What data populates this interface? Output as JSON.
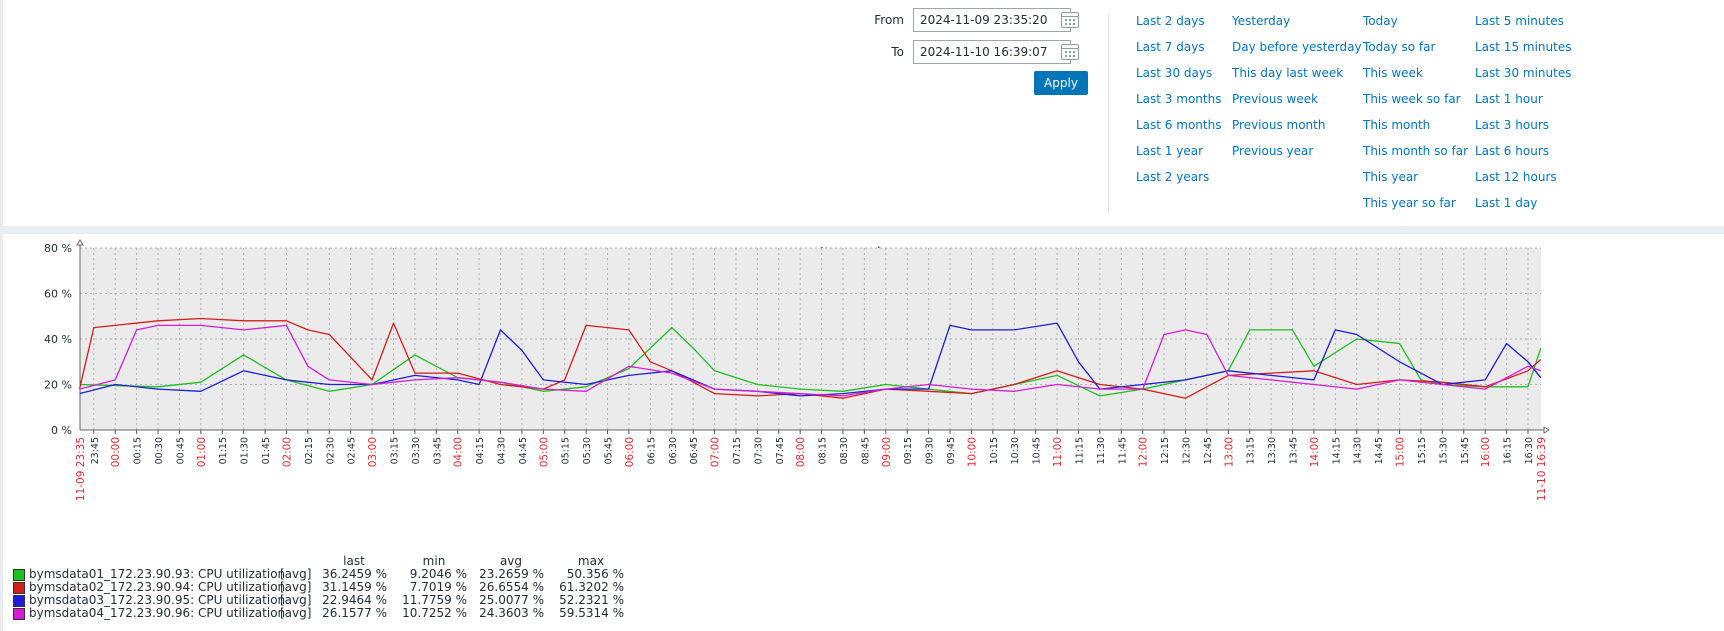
{
  "filter": {
    "from_label": "From",
    "from_value": "2024-11-09 23:35:20",
    "to_label": "To",
    "to_value": "2024-11-10 16:39:07",
    "apply_label": "Apply",
    "quick_ranges": [
      [
        "Last 2 days",
        "Last 7 days",
        "Last 30 days",
        "Last 3 months",
        "Last 6 months",
        "Last 1 year",
        "Last 2 years"
      ],
      [
        "Yesterday",
        "Day before yesterday",
        "This day last week",
        "Previous week",
        "Previous month",
        "Previous year"
      ],
      [
        "Today",
        "Today so far",
        "This week",
        "This week so far",
        "This month",
        "This month so far",
        "This year",
        "This year so far"
      ],
      [
        "Last 5 minutes",
        "Last 15 minutes",
        "Last 30 minutes",
        "Last 1 hour",
        "Last 3 hours",
        "Last 6 hours",
        "Last 12 hours",
        "Last 1 day"
      ]
    ]
  },
  "graph": {
    "title": "Item values",
    "start_label": "11-09 23:35",
    "end_label": "11-10 16:39",
    "legend_headers": [
      "last",
      "min",
      "avg",
      "max"
    ],
    "colors": {
      "major_tick": "#e0282e",
      "grid": "#aab3b9",
      "plot_bg": "#ebebeb"
    }
  },
  "chart_data": {
    "type": "line",
    "title": "Item values",
    "x_range": [
      "2024-11-09 23:35:20",
      "2024-11-10 16:39:07"
    ],
    "ylim": [
      0,
      80
    ],
    "y_ticks": [
      "0 %",
      "20 %",
      "40 %",
      "60 %",
      "80 %"
    ],
    "x_ticks": [
      "23:45",
      "00:00",
      "00:15",
      "00:30",
      "00:45",
      "01:00",
      "01:15",
      "01:30",
      "01:45",
      "02:00",
      "02:15",
      "02:30",
      "02:45",
      "03:00",
      "03:15",
      "03:30",
      "03:45",
      "04:00",
      "04:15",
      "04:30",
      "04:45",
      "05:00",
      "05:15",
      "05:30",
      "05:45",
      "06:00",
      "06:15",
      "06:30",
      "06:45",
      "07:00",
      "07:15",
      "07:30",
      "07:45",
      "08:00",
      "08:15",
      "08:30",
      "08:45",
      "09:00",
      "09:15",
      "09:30",
      "09:45",
      "10:00",
      "10:15",
      "10:30",
      "10:45",
      "11:00",
      "11:15",
      "11:30",
      "11:45",
      "12:00",
      "12:15",
      "12:30",
      "12:45",
      "13:00",
      "13:15",
      "13:30",
      "13:45",
      "14:00",
      "14:15",
      "14:30",
      "14:45",
      "15:00",
      "15:15",
      "15:30",
      "15:45",
      "16:00",
      "16:15",
      "16:30"
    ],
    "grid": true,
    "legend_position": "bottom-left",
    "series": [
      {
        "name": "bymsdata01_172.23.90.93: CPU utilization",
        "func": "[avg]",
        "color": "#1ec01e",
        "last": "36.2459 %",
        "min": "9.2046 %",
        "avg": "23.2659 %",
        "max": "50.356 %",
        "x": [
          "23:35",
          "00:30",
          "01:00",
          "01:30",
          "02:00",
          "02:30",
          "03:00",
          "03:30",
          "04:00",
          "04:30",
          "05:00",
          "05:30",
          "06:00",
          "06:30",
          "06:45",
          "07:00",
          "07:30",
          "08:00",
          "08:30",
          "09:00",
          "09:30",
          "10:00",
          "10:30",
          "11:00",
          "11:30",
          "12:00",
          "12:30",
          "13:00",
          "13:15",
          "13:45",
          "14:00",
          "14:30",
          "15:00",
          "15:15",
          "15:30",
          "16:00",
          "16:30",
          "16:39"
        ],
        "values": [
          20,
          19,
          21,
          33,
          22,
          17,
          20,
          33,
          23,
          21,
          17,
          19,
          27,
          45,
          36,
          26,
          20,
          18,
          17,
          20,
          18,
          16,
          20,
          24,
          15,
          18,
          22,
          26,
          44,
          44,
          28,
          40,
          38,
          22,
          20,
          19,
          19,
          36
        ]
      },
      {
        "name": "bymsdata02_172.23.90.94: CPU utilization",
        "func": "[avg]",
        "color": "#d41e1e",
        "last": "31.1459 %",
        "min": "7.7019 %",
        "avg": "26.6554 %",
        "max": "61.3202 %",
        "x": [
          "23:35",
          "23:45",
          "00:30",
          "01:00",
          "01:30",
          "02:00",
          "02:15",
          "02:30",
          "02:45",
          "03:00",
          "03:15",
          "03:30",
          "04:00",
          "04:30",
          "05:00",
          "05:15",
          "05:30",
          "06:00",
          "06:15",
          "06:30",
          "07:00",
          "07:30",
          "08:00",
          "08:30",
          "09:00",
          "09:30",
          "10:00",
          "10:30",
          "11:00",
          "11:30",
          "12:00",
          "12:30",
          "13:00",
          "13:30",
          "14:00",
          "14:30",
          "15:00",
          "15:30",
          "16:00",
          "16:30",
          "16:39"
        ],
        "values": [
          18,
          45,
          48,
          49,
          48,
          48,
          44,
          42,
          32,
          22,
          47,
          25,
          25,
          20,
          18,
          22,
          46,
          44,
          30,
          26,
          16,
          15,
          16,
          14,
          18,
          17,
          16,
          20,
          26,
          20,
          18,
          14,
          24,
          25,
          26,
          20,
          22,
          21,
          19,
          26,
          31
        ]
      },
      {
        "name": "bymsdata03_172.23.90.95: CPU utilization",
        "func": "[avg]",
        "color": "#1e1ed4",
        "last": "22.9464 %",
        "min": "11.7759 %",
        "avg": "25.0077 %",
        "max": "52.2321 %",
        "x": [
          "23:35",
          "00:00",
          "00:30",
          "01:00",
          "01:30",
          "02:00",
          "02:30",
          "03:00",
          "03:30",
          "04:00",
          "04:15",
          "04:30",
          "04:45",
          "05:00",
          "05:30",
          "06:00",
          "06:30",
          "07:00",
          "07:30",
          "08:00",
          "08:30",
          "09:00",
          "09:30",
          "09:45",
          "10:00",
          "10:30",
          "11:00",
          "11:15",
          "11:30",
          "12:00",
          "12:30",
          "13:00",
          "13:30",
          "14:00",
          "14:15",
          "14:30",
          "15:00",
          "15:30",
          "16:00",
          "16:15",
          "16:30",
          "16:39"
        ],
        "values": [
          16,
          20,
          18,
          17,
          26,
          22,
          20,
          20,
          24,
          22,
          20,
          44,
          35,
          22,
          20,
          24,
          26,
          18,
          17,
          15,
          16,
          18,
          18,
          46,
          44,
          44,
          47,
          30,
          18,
          20,
          22,
          26,
          24,
          22,
          44,
          42,
          30,
          20,
          22,
          38,
          30,
          23
        ]
      },
      {
        "name": "bymsdata04_172.23.90.96: CPU utilization",
        "func": "[avg]",
        "color": "#d41ed4",
        "last": "26.1577 %",
        "min": "10.7252 %",
        "avg": "24.3603 %",
        "max": "59.5314 %",
        "x": [
          "23:35",
          "00:00",
          "00:15",
          "00:30",
          "01:00",
          "01:30",
          "02:00",
          "02:15",
          "02:30",
          "03:00",
          "03:30",
          "04:00",
          "04:30",
          "05:00",
          "05:30",
          "06:00",
          "06:30",
          "07:00",
          "07:30",
          "08:00",
          "08:30",
          "09:00",
          "09:30",
          "10:00",
          "10:30",
          "11:00",
          "11:30",
          "12:00",
          "12:15",
          "12:30",
          "12:45",
          "13:00",
          "13:30",
          "14:00",
          "14:30",
          "15:00",
          "15:30",
          "16:00",
          "16:30",
          "16:39"
        ],
        "values": [
          18,
          22,
          44,
          46,
          46,
          44,
          46,
          28,
          22,
          20,
          22,
          23,
          21,
          18,
          17,
          28,
          25,
          18,
          17,
          16,
          15,
          18,
          20,
          18,
          17,
          20,
          18,
          18,
          42,
          44,
          42,
          24,
          22,
          20,
          18,
          22,
          20,
          18,
          28,
          26
        ]
      }
    ]
  }
}
